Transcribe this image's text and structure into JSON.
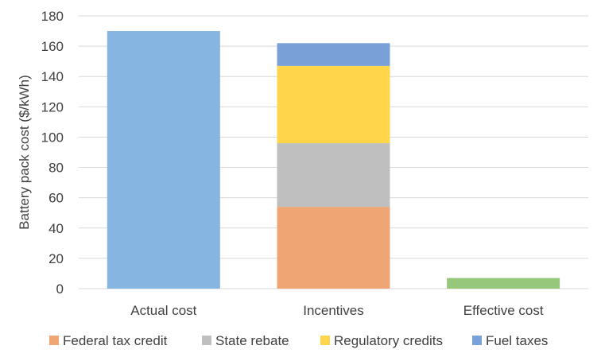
{
  "chart_data": {
    "type": "bar",
    "stacked": true,
    "title": "",
    "xlabel": "",
    "ylabel": "Battery pack cost ($/kWh)",
    "ylim": [
      0,
      180
    ],
    "yticks": [
      0,
      20,
      40,
      60,
      80,
      100,
      120,
      140,
      160,
      180
    ],
    "grid": true,
    "legend_position": "bottom",
    "categories": [
      "Actual cost",
      "Incentives",
      "Effective cost"
    ],
    "series": [
      {
        "name": "",
        "color": "#85b5e0",
        "values": [
          170,
          null,
          null
        ]
      },
      {
        "name": "Federal tax credit",
        "color": "#f0a674",
        "values": [
          null,
          54,
          null
        ]
      },
      {
        "name": "State rebate",
        "color": "#bfbfbf",
        "values": [
          null,
          42,
          null
        ]
      },
      {
        "name": "Regulatory credits",
        "color": "#ffd54a",
        "values": [
          null,
          51,
          null
        ]
      },
      {
        "name": "Fuel taxes",
        "color": "#7aa0d8",
        "values": [
          null,
          15,
          null
        ]
      },
      {
        "name": "",
        "color": "#96c77a",
        "values": [
          null,
          null,
          7
        ]
      }
    ],
    "legend": [
      {
        "label": "Federal tax credit",
        "color": "#f0a674"
      },
      {
        "label": "State rebate",
        "color": "#bfbfbf"
      },
      {
        "label": "Regulatory credits",
        "color": "#ffd54a"
      },
      {
        "label": "Fuel taxes",
        "color": "#7aa0d8"
      }
    ]
  }
}
